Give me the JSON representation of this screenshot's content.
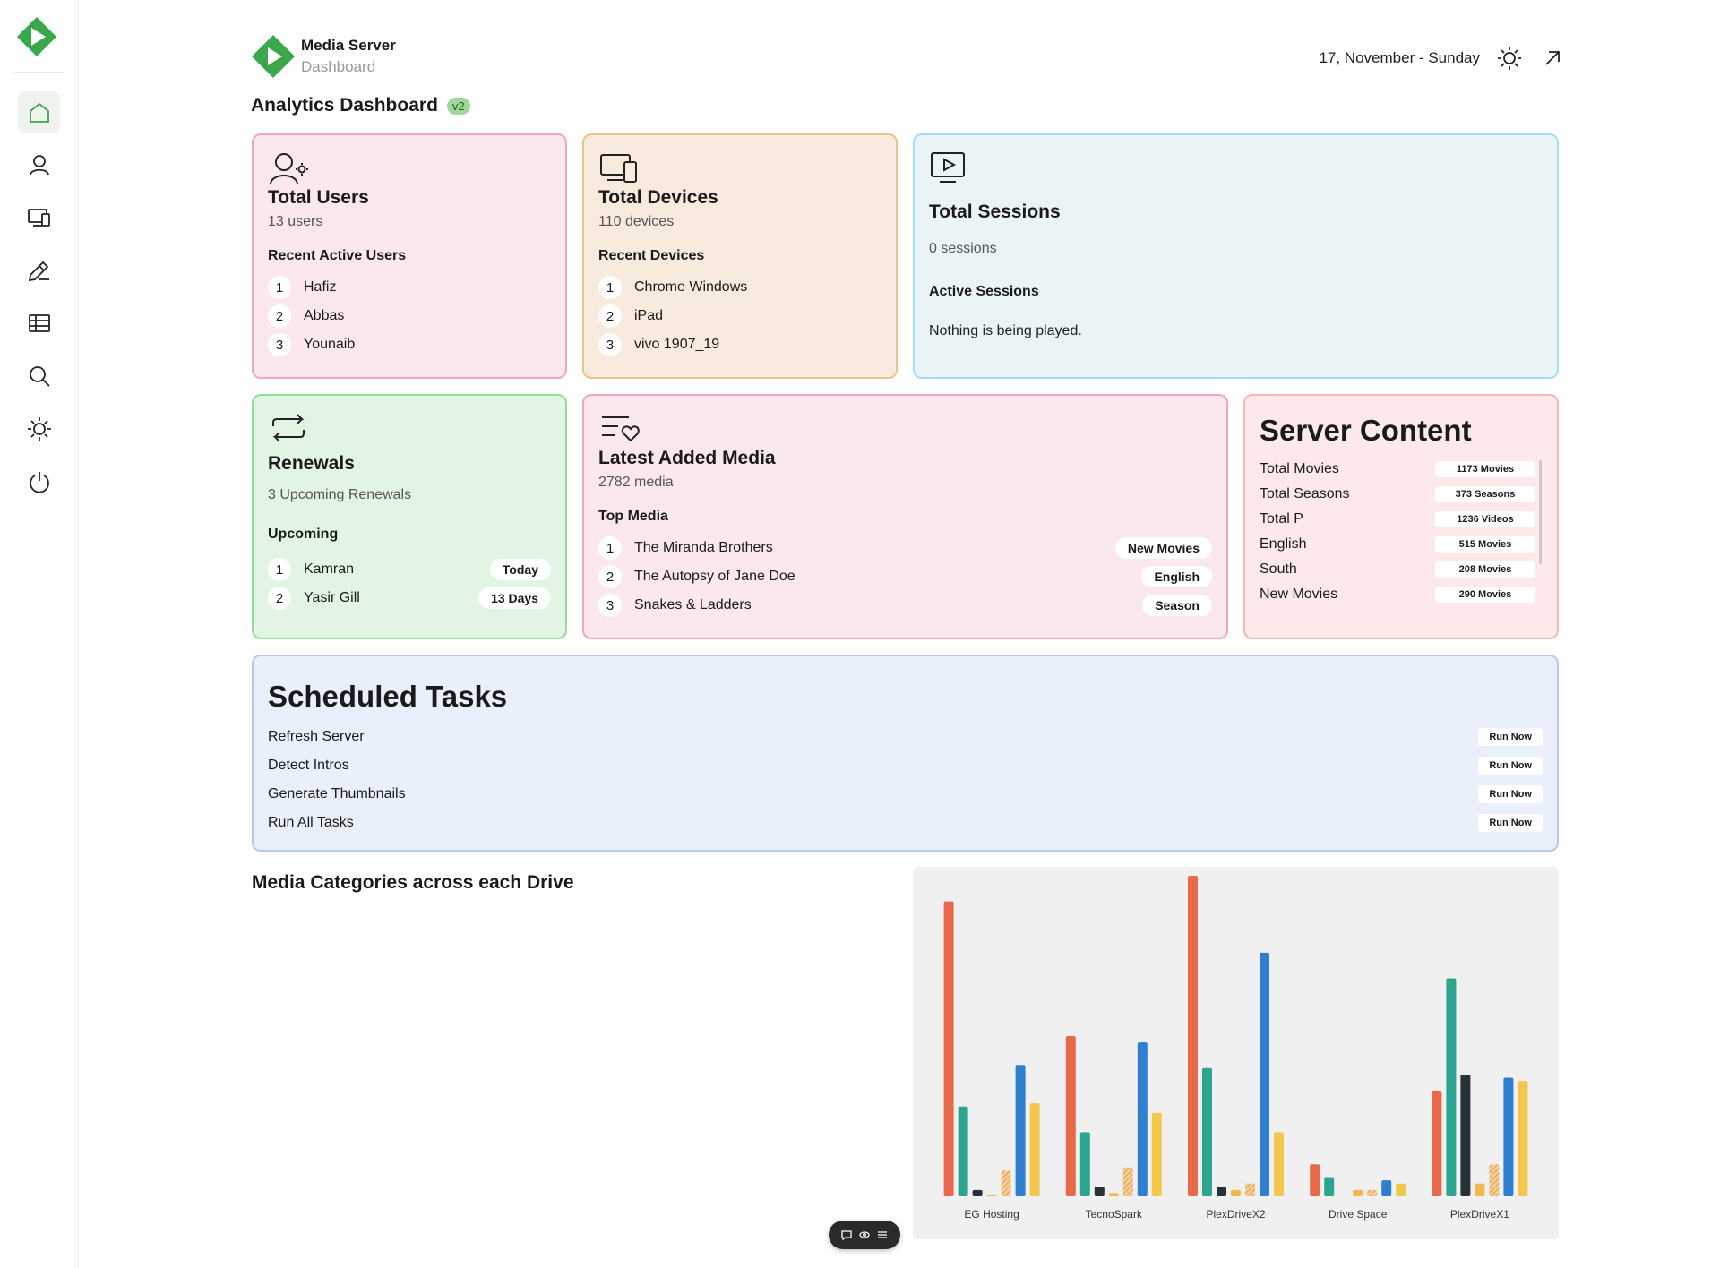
{
  "brand": {
    "name": "Media Server",
    "subtitle": "Dashboard",
    "accent": "#3aa84a"
  },
  "header": {
    "date": "17, November - Sunday"
  },
  "page": {
    "title": "Analytics Dashboard",
    "badge": "v2"
  },
  "sidebar": {
    "items": [
      {
        "icon": "home-icon",
        "active": true
      },
      {
        "icon": "user-icon"
      },
      {
        "icon": "devices-icon"
      },
      {
        "icon": "edit-icon"
      },
      {
        "icon": "table-icon"
      },
      {
        "icon": "search-icon"
      },
      {
        "icon": "sun-icon"
      },
      {
        "icon": "power-icon"
      }
    ]
  },
  "users": {
    "title": "Total Users",
    "count": "13 users",
    "section": "Recent Active Users",
    "items": [
      {
        "n": "1",
        "name": "Hafiz"
      },
      {
        "n": "2",
        "name": "Abbas"
      },
      {
        "n": "3",
        "name": "Younaib"
      }
    ]
  },
  "devices": {
    "title": "Total Devices",
    "count": "110 devices",
    "section": "Recent Devices",
    "items": [
      {
        "n": "1",
        "name": "Chrome Windows"
      },
      {
        "n": "2",
        "name": "iPad"
      },
      {
        "n": "3",
        "name": "vivo 1907_19"
      }
    ]
  },
  "sessions": {
    "title": "Total Sessions",
    "count": "0 sessions",
    "section": "Active Sessions",
    "empty": "Nothing is being played."
  },
  "renewals": {
    "title": "Renewals",
    "count": "3 Upcoming Renewals",
    "section": "Upcoming",
    "items": [
      {
        "n": "1",
        "name": "Kamran",
        "tag": "Today"
      },
      {
        "n": "2",
        "name": "Yasir Gill",
        "tag": "13 Days"
      }
    ]
  },
  "media": {
    "title": "Latest Added Media",
    "count": "2782 media",
    "section": "Top Media",
    "items": [
      {
        "n": "1",
        "name": "The Miranda Brothers",
        "tag": "New Movies"
      },
      {
        "n": "2",
        "name": "The Autopsy of Jane Doe",
        "tag": "English"
      },
      {
        "n": "3",
        "name": "Snakes & Ladders",
        "tag": "Season"
      }
    ]
  },
  "content": {
    "title": "Server Content",
    "rows": [
      {
        "label": "Total Movies",
        "value": "1173 Movies"
      },
      {
        "label": "Total Seasons",
        "value": "373 Seasons"
      },
      {
        "label": "Total P",
        "value": "1236 Videos"
      },
      {
        "label": "English",
        "value": "515 Movies"
      },
      {
        "label": "South",
        "value": "208 Movies"
      },
      {
        "label": "New Movies",
        "value": "290 Movies"
      }
    ]
  },
  "tasks": {
    "title": "Scheduled Tasks",
    "items": [
      {
        "name": "Refresh Server",
        "action": "Run Now"
      },
      {
        "name": "Detect Intros",
        "action": "Run Now"
      },
      {
        "name": "Generate Thumbnails",
        "action": "Run Now"
      },
      {
        "name": "Run All Tasks",
        "action": "Run Now"
      }
    ]
  },
  "chart_section": {
    "title": "Media Categories across each Drive"
  },
  "chart_data": {
    "type": "bar",
    "categories": [
      "EG Hosting",
      "TecnoSpark",
      "PlexDriveX2",
      "Drive Space",
      "PlexDriveX1"
    ],
    "ylim": [
      0,
      100
    ],
    "grid": false,
    "series": [
      {
        "color": "#e8684a",
        "values": [
          92,
          50,
          100,
          10,
          33
        ]
      },
      {
        "color": "#2ba58f",
        "values": [
          28,
          20,
          40,
          6,
          68
        ]
      },
      {
        "color": "#263238",
        "values": [
          2,
          3,
          3,
          0,
          38
        ]
      },
      {
        "color": "#f2b84b",
        "values": [
          0.5,
          1,
          2,
          2,
          4
        ]
      },
      {
        "color": "#e9944a",
        "hatched": true,
        "values": [
          8,
          9,
          4,
          2,
          10
        ]
      },
      {
        "color": "#2f7fd0",
        "values": [
          41,
          48,
          76,
          5,
          37
        ]
      },
      {
        "color": "#f2c84b",
        "values": [
          29,
          26,
          20,
          4,
          36
        ]
      }
    ]
  }
}
